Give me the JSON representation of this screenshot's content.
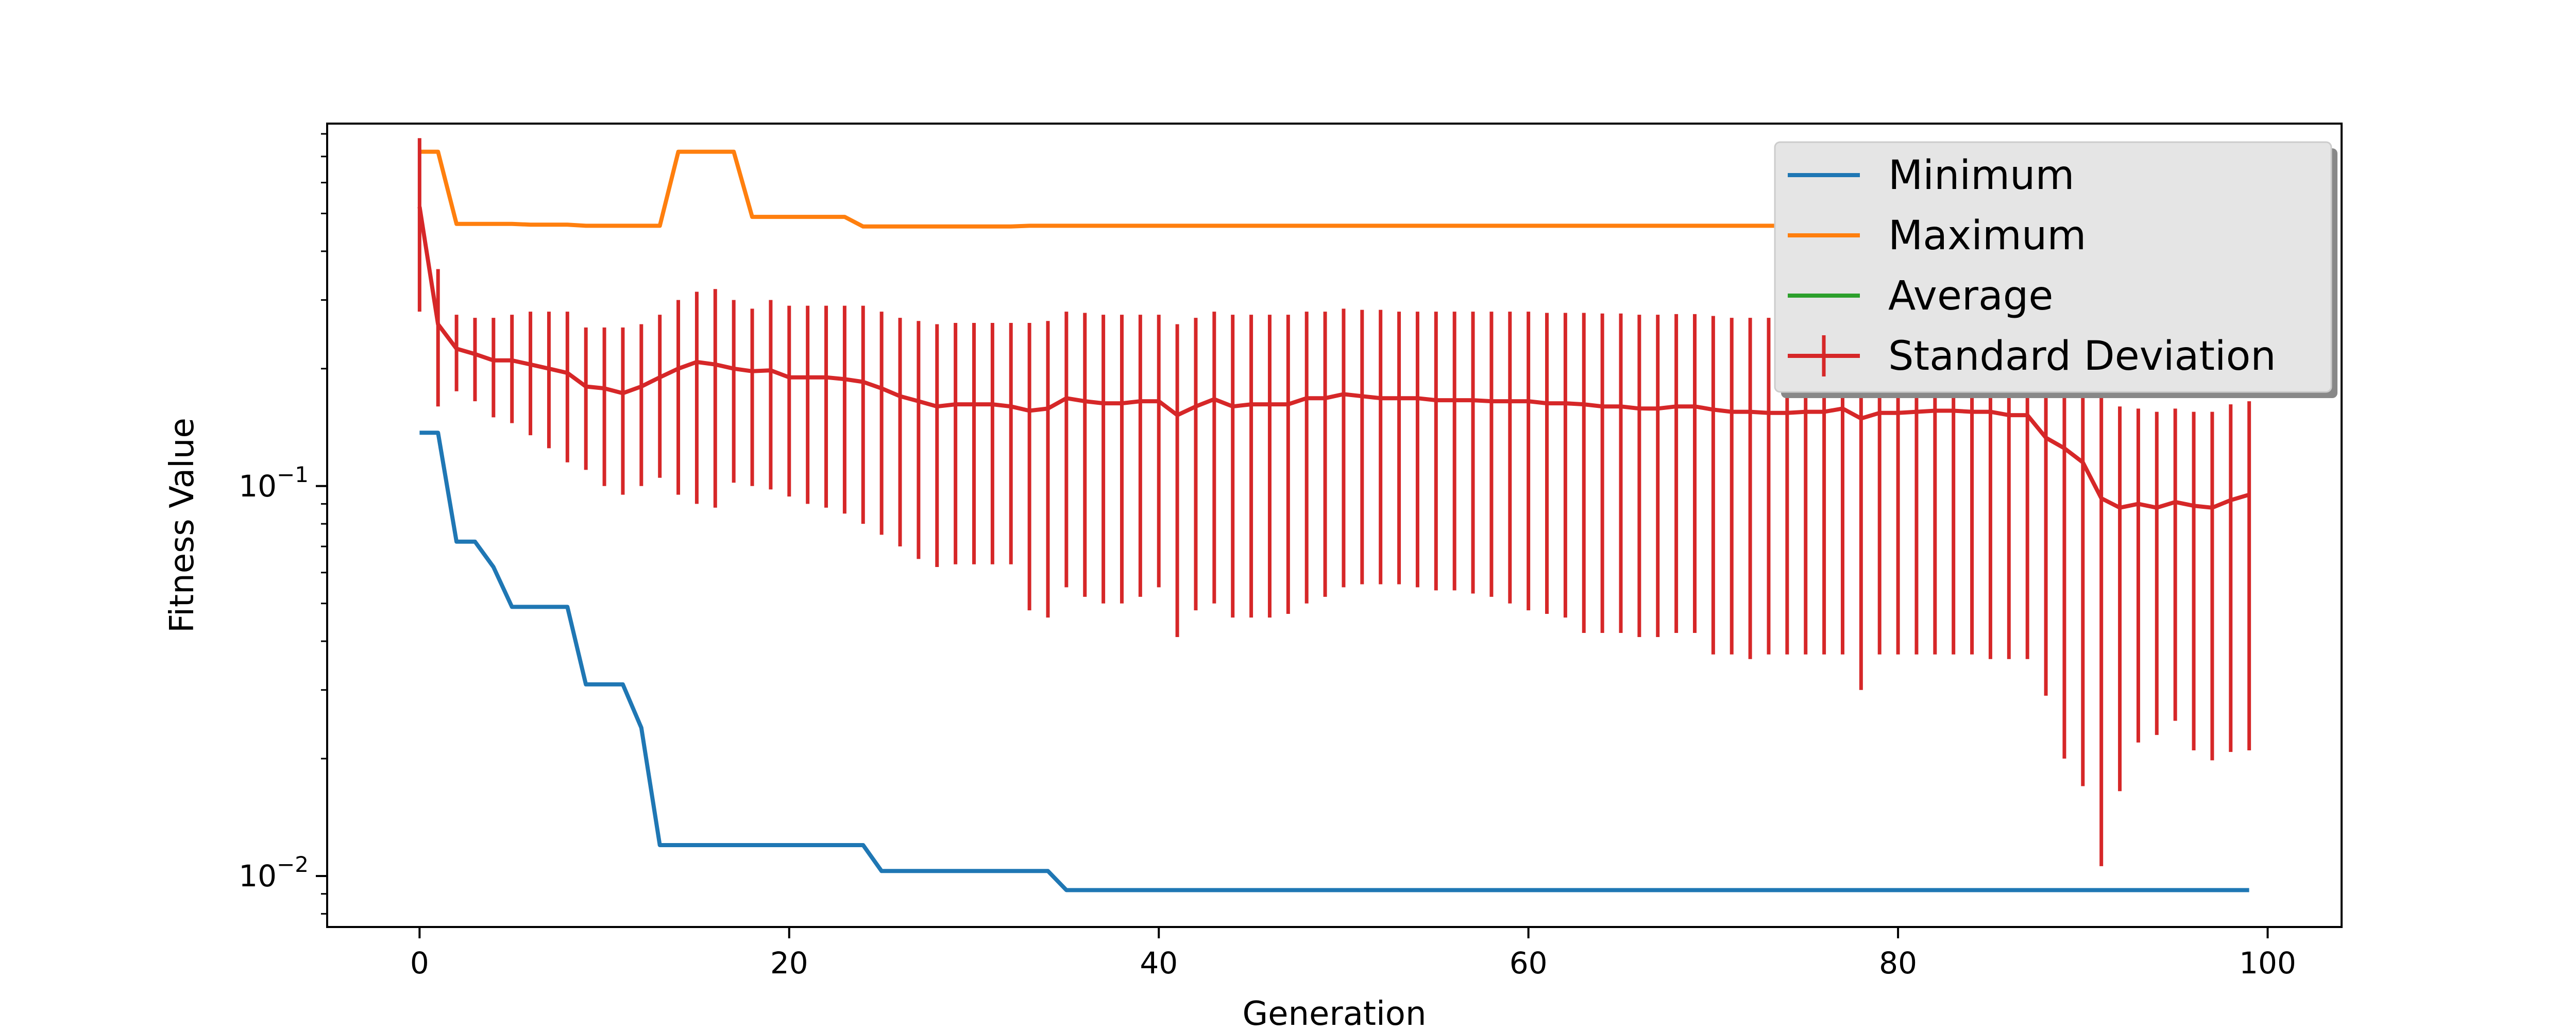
{
  "chart_data": {
    "type": "line",
    "xlabel": "Generation",
    "ylabel": "Fitness Value",
    "xlim": [
      -5,
      104
    ],
    "ylim": [
      0.0074,
      0.85
    ],
    "yscale": "log",
    "x_ticks": [
      0,
      20,
      40,
      60,
      80,
      100
    ],
    "y_ticks": [
      {
        "value": 0.1,
        "base": "10",
        "exp": "−1"
      },
      {
        "value": 0.01,
        "base": "10",
        "exp": "−2"
      }
    ],
    "grid": false,
    "legend_position": "top-right",
    "colors": {
      "Minimum": "#1f77b4",
      "Maximum": "#ff7f0e",
      "Average": "#2ca02c",
      "Standard Deviation": "#d62728"
    },
    "series": [
      {
        "name": "Minimum",
        "type": "line",
        "values": [
          0.137,
          0.137,
          0.072,
          0.072,
          0.062,
          0.049,
          0.049,
          0.049,
          0.049,
          0.031,
          0.031,
          0.031,
          0.024,
          0.012,
          0.012,
          0.012,
          0.012,
          0.012,
          0.012,
          0.012,
          0.012,
          0.012,
          0.012,
          0.012,
          0.012,
          0.0103,
          0.0103,
          0.0103,
          0.0103,
          0.0103,
          0.0103,
          0.0103,
          0.0103,
          0.0103,
          0.0103,
          0.0092,
          0.0092,
          0.0092,
          0.0092,
          0.0092,
          0.0092,
          0.0092,
          0.0092,
          0.0092,
          0.0092,
          0.0092,
          0.0092,
          0.0092,
          0.0092,
          0.0092,
          0.0092,
          0.0092,
          0.0092,
          0.0092,
          0.0092,
          0.0092,
          0.0092,
          0.0092,
          0.0092,
          0.0092,
          0.0092,
          0.0092,
          0.0092,
          0.0092,
          0.0092,
          0.0092,
          0.0092,
          0.0092,
          0.0092,
          0.0092,
          0.0092,
          0.0092,
          0.0092,
          0.0092,
          0.0092,
          0.0092,
          0.0092,
          0.0092,
          0.0092,
          0.0092,
          0.0092,
          0.0092,
          0.0092,
          0.0092,
          0.0092,
          0.0092,
          0.0092,
          0.0092,
          0.0092,
          0.0092,
          0.0092,
          0.0092,
          0.0092,
          0.0092,
          0.0092,
          0.0092,
          0.0092,
          0.0092,
          0.0092,
          0.0092
        ]
      },
      {
        "name": "Maximum",
        "type": "line",
        "values": [
          0.72,
          0.72,
          0.47,
          0.47,
          0.47,
          0.47,
          0.468,
          0.468,
          0.468,
          0.465,
          0.465,
          0.465,
          0.465,
          0.465,
          0.72,
          0.72,
          0.72,
          0.72,
          0.49,
          0.49,
          0.49,
          0.49,
          0.49,
          0.49,
          0.463,
          0.463,
          0.463,
          0.463,
          0.463,
          0.463,
          0.463,
          0.463,
          0.463,
          0.465,
          0.465,
          0.465,
          0.465,
          0.465,
          0.465,
          0.465,
          0.465,
          0.465,
          0.465,
          0.465,
          0.465,
          0.465,
          0.465,
          0.465,
          0.465,
          0.465,
          0.465,
          0.465,
          0.465,
          0.465,
          0.465,
          0.465,
          0.465,
          0.465,
          0.465,
          0.465,
          0.465,
          0.465,
          0.465,
          0.465,
          0.465,
          0.465,
          0.465,
          0.465,
          0.465,
          0.465,
          0.465,
          0.465,
          0.465,
          0.465,
          0.465,
          0.465,
          0.465,
          0.465,
          0.465,
          0.465,
          0.465,
          0.465,
          0.465,
          0.465,
          0.465,
          0.465,
          0.465,
          0.465,
          0.465,
          0.465,
          0.465,
          0.465,
          0.465,
          0.465,
          0.465,
          0.465,
          0.465,
          0.465,
          0.465,
          0.465
        ]
      },
      {
        "name": "Average",
        "type": "line",
        "values": []
      },
      {
        "name": "Standard Deviation",
        "type": "errorbar",
        "values": [
          0.52,
          0.26,
          0.225,
          0.218,
          0.21,
          0.21,
          0.205,
          0.2,
          0.195,
          0.18,
          0.178,
          0.173,
          0.18,
          0.19,
          0.2,
          0.208,
          0.205,
          0.2,
          0.197,
          0.198,
          0.19,
          0.19,
          0.19,
          0.188,
          0.185,
          0.178,
          0.17,
          0.165,
          0.16,
          0.162,
          0.162,
          0.162,
          0.16,
          0.156,
          0.158,
          0.168,
          0.165,
          0.163,
          0.163,
          0.165,
          0.165,
          0.152,
          0.16,
          0.167,
          0.16,
          0.162,
          0.162,
          0.162,
          0.168,
          0.168,
          0.172,
          0.17,
          0.168,
          0.168,
          0.168,
          0.166,
          0.166,
          0.166,
          0.165,
          0.165,
          0.165,
          0.163,
          0.163,
          0.162,
          0.16,
          0.16,
          0.158,
          0.158,
          0.16,
          0.16,
          0.157,
          0.155,
          0.155,
          0.154,
          0.154,
          0.155,
          0.155,
          0.158,
          0.149,
          0.154,
          0.154,
          0.155,
          0.156,
          0.156,
          0.155,
          0.155,
          0.152,
          0.152,
          0.133,
          0.125,
          0.115,
          0.093,
          0.088,
          0.09,
          0.088,
          0.091,
          0.089,
          0.088,
          0.092,
          0.095
        ],
        "lower": [
          0.28,
          0.16,
          0.175,
          0.165,
          0.15,
          0.145,
          0.135,
          0.125,
          0.115,
          0.11,
          0.1,
          0.095,
          0.1,
          0.105,
          0.095,
          0.09,
          0.088,
          0.102,
          0.1,
          0.098,
          0.094,
          0.09,
          0.088,
          0.085,
          0.08,
          0.075,
          0.07,
          0.065,
          0.062,
          0.063,
          0.063,
          0.063,
          0.063,
          0.048,
          0.046,
          0.055,
          0.052,
          0.05,
          0.05,
          0.052,
          0.055,
          0.041,
          0.048,
          0.05,
          0.046,
          0.046,
          0.046,
          0.047,
          0.05,
          0.052,
          0.055,
          0.056,
          0.056,
          0.056,
          0.055,
          0.054,
          0.054,
          0.053,
          0.052,
          0.05,
          0.048,
          0.047,
          0.046,
          0.042,
          0.042,
          0.042,
          0.041,
          0.041,
          0.042,
          0.042,
          0.037,
          0.037,
          0.036,
          0.037,
          0.037,
          0.037,
          0.037,
          0.037,
          0.03,
          0.037,
          0.037,
          0.037,
          0.037,
          0.037,
          0.037,
          0.036,
          0.036,
          0.036,
          0.029,
          0.02,
          0.017,
          0.0106,
          0.0165,
          0.022,
          0.023,
          0.025,
          0.021,
          0.0198,
          0.0208,
          0.021
        ],
        "upper": [
          0.78,
          0.36,
          0.275,
          0.27,
          0.27,
          0.275,
          0.28,
          0.28,
          0.28,
          0.255,
          0.255,
          0.255,
          0.26,
          0.275,
          0.3,
          0.315,
          0.32,
          0.3,
          0.285,
          0.3,
          0.29,
          0.29,
          0.29,
          0.29,
          0.29,
          0.28,
          0.27,
          0.265,
          0.26,
          0.262,
          0.262,
          0.262,
          0.262,
          0.262,
          0.265,
          0.28,
          0.278,
          0.275,
          0.275,
          0.275,
          0.275,
          0.26,
          0.27,
          0.28,
          0.275,
          0.275,
          0.275,
          0.275,
          0.28,
          0.28,
          0.285,
          0.283,
          0.283,
          0.28,
          0.28,
          0.28,
          0.28,
          0.28,
          0.28,
          0.28,
          0.28,
          0.278,
          0.278,
          0.278,
          0.277,
          0.277,
          0.275,
          0.275,
          0.276,
          0.276,
          0.273,
          0.27,
          0.27,
          0.27,
          0.27,
          0.27,
          0.27,
          0.275,
          0.26,
          0.27,
          0.27,
          0.27,
          0.272,
          0.272,
          0.27,
          0.27,
          0.268,
          0.268,
          0.24,
          0.225,
          0.205,
          0.185,
          0.16,
          0.158,
          0.155,
          0.158,
          0.155,
          0.155,
          0.162,
          0.165
        ]
      }
    ]
  }
}
